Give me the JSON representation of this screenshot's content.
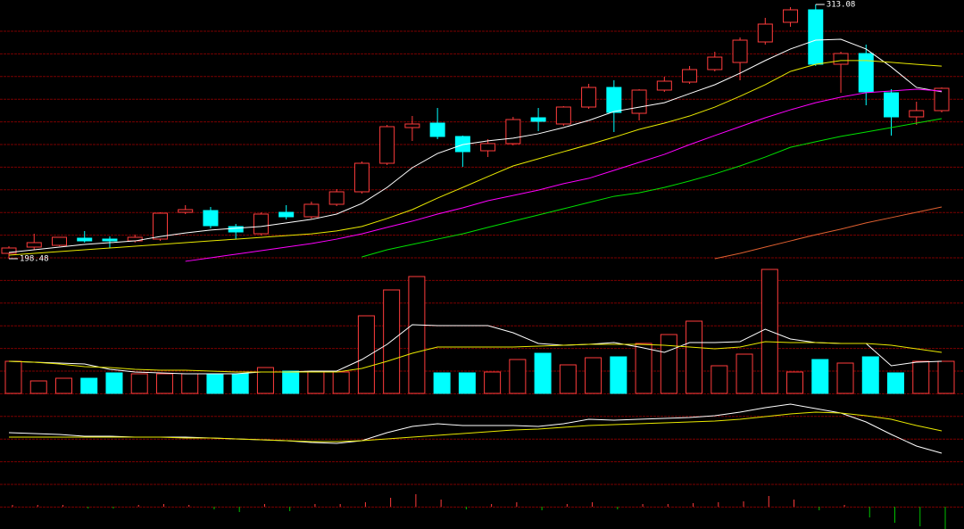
{
  "chart_data": [
    {
      "type": "candlestick",
      "up_color": "#ff3c3c",
      "down_color": "#00ffff",
      "ylim": [
        198.48,
        313.08
      ],
      "max_label": 313.08,
      "min_label": 198.48,
      "open": [
        200.89,
        203.71,
        204.51,
        207.73,
        207.33,
        206.52,
        207.33,
        219.39,
        220.19,
        212.96,
        209.74,
        219.39,
        217.38,
        223.01,
        228.64,
        241.5,
        257.59,
        259.6,
        253.57,
        247.13,
        250.35,
        262.01,
        259.2,
        266.84,
        275.68,
        264.02,
        274.48,
        278.1,
        283.73,
        286.94,
        296.19,
        305.04,
        310.67,
        286.14,
        290.96,
        273.27,
        262.41,
        265.23
      ],
      "high": [
        204.11,
        209.74,
        208.13,
        210.95,
        208.53,
        209.34,
        219.39,
        222.61,
        221.8,
        214.16,
        219.39,
        222.61,
        224.21,
        229.84,
        242.31,
        258.8,
        262.82,
        266.43,
        253.97,
        252.36,
        262.41,
        266.43,
        267.24,
        277.29,
        278.9,
        274.88,
        280.51,
        285.33,
        291.77,
        298.2,
        307.05,
        311.87,
        313.08,
        291.77,
        294.98,
        274.88,
        269.25,
        275.68
      ],
      "low": [
        198.48,
        202.5,
        204.11,
        205.72,
        203.31,
        205.72,
        206.52,
        218.59,
        212.15,
        207.33,
        208.93,
        216.17,
        216.57,
        222.2,
        227.83,
        240.7,
        251.56,
        252.36,
        239.9,
        244.32,
        249.55,
        255.98,
        258.39,
        266.03,
        255.58,
        260.81,
        273.67,
        277.29,
        282.92,
        278.9,
        294.98,
        303.03,
        285.33,
        273.27,
        267.64,
        253.97,
        258.8,
        264.42
      ],
      "close": [
        203.31,
        205.72,
        208.13,
        206.52,
        206.52,
        208.13,
        218.99,
        220.6,
        213.36,
        210.54,
        218.59,
        217.38,
        223.01,
        228.64,
        241.5,
        257.99,
        259.2,
        253.57,
        246.73,
        250.35,
        261.21,
        260.4,
        266.84,
        275.68,
        264.42,
        274.48,
        278.5,
        283.73,
        289.35,
        296.99,
        304.23,
        310.67,
        286.14,
        290.96,
        273.67,
        262.41,
        265.23,
        275.28
      ],
      "lines": [
        {
          "color": "#ffffff",
          "values": [
            201.3,
            202.5,
            203.7,
            204.9,
            205.7,
            206.5,
            208.5,
            210.1,
            211.4,
            212.2,
            213.0,
            214.6,
            216.2,
            218.6,
            223.4,
            230.6,
            239.5,
            245.9,
            249.9,
            251.6,
            252.8,
            254.8,
            257.6,
            260.8,
            264.8,
            266.8,
            268.8,
            272.9,
            276.9,
            282.1,
            287.8,
            293.0,
            297.0,
            297.4,
            293.0,
            284.9,
            275.7,
            273.7
          ]
        },
        {
          "color": "#e8e800",
          "values": [
            200.1,
            200.9,
            201.7,
            202.5,
            203.3,
            204.1,
            204.9,
            205.7,
            206.5,
            207.3,
            208.1,
            208.9,
            209.7,
            211.0,
            213.0,
            216.6,
            220.6,
            225.8,
            230.6,
            235.5,
            240.3,
            243.5,
            246.7,
            249.9,
            253.2,
            256.8,
            259.6,
            262.8,
            266.8,
            271.7,
            276.9,
            282.9,
            286.1,
            287.8,
            287.8,
            287.0,
            286.1,
            285.3
          ]
        },
        {
          "color": "#ff00ff",
          "values": [
            null,
            null,
            null,
            null,
            null,
            null,
            null,
            197.3,
            198.9,
            200.5,
            202.1,
            203.7,
            205.3,
            207.3,
            209.7,
            212.6,
            215.4,
            218.6,
            221.4,
            224.6,
            227.0,
            229.4,
            232.3,
            234.7,
            238.3,
            241.9,
            245.5,
            249.9,
            254.0,
            258.0,
            262.0,
            265.6,
            268.8,
            271.3,
            273.3,
            274.1,
            274.9,
            274.1
          ]
        },
        {
          "color": "#00e000",
          "values": [
            null,
            null,
            null,
            null,
            null,
            null,
            null,
            null,
            null,
            null,
            null,
            null,
            null,
            null,
            199.3,
            202.5,
            204.9,
            207.3,
            209.7,
            212.6,
            215.4,
            218.2,
            221.0,
            223.8,
            226.6,
            228.2,
            230.6,
            233.5,
            236.7,
            240.3,
            244.3,
            248.7,
            251.2,
            253.6,
            255.6,
            257.6,
            259.6,
            261.6
          ]
        },
        {
          "color": "#e06030",
          "values": [
            null,
            null,
            null,
            null,
            null,
            null,
            null,
            null,
            null,
            null,
            null,
            null,
            null,
            null,
            null,
            null,
            null,
            null,
            null,
            null,
            null,
            null,
            null,
            null,
            null,
            null,
            null,
            null,
            198.5,
            200.9,
            203.7,
            206.5,
            209.3,
            211.8,
            214.6,
            217.0,
            219.4,
            221.8
          ]
        }
      ]
    },
    {
      "type": "volume",
      "ylim": [
        0,
        140
      ],
      "values": [
        36,
        14,
        17,
        17,
        23,
        22,
        22,
        22,
        22,
        22,
        29,
        25,
        24,
        24,
        87,
        116,
        131,
        23,
        23,
        24,
        38,
        45,
        32,
        40,
        41,
        56,
        66,
        81,
        31,
        44,
        139,
        24,
        38,
        34,
        41,
        23,
        36,
        36
      ],
      "lines": [
        {
          "color": "#ffffff",
          "values": [
            36,
            35,
            34,
            33,
            27,
            24,
            23,
            22,
            22,
            22,
            24,
            24,
            25,
            25,
            38,
            55,
            77,
            76,
            76,
            76,
            68,
            56,
            54,
            55,
            57,
            52,
            46,
            57,
            57,
            58,
            72,
            61,
            57,
            56,
            56,
            31,
            35,
            36
          ]
        },
        {
          "color": "#e8e800",
          "values": [
            36,
            35,
            33,
            30,
            29,
            27,
            26,
            26,
            25,
            24,
            24,
            24,
            24,
            24,
            28,
            36,
            45,
            52,
            52,
            52,
            52,
            53,
            54,
            55,
            55,
            55,
            54,
            52,
            50,
            52,
            58,
            57,
            57,
            56,
            56,
            54,
            50,
            46
          ]
        }
      ]
    },
    {
      "type": "line",
      "ylim": [
        -40,
        60
      ],
      "lines": [
        {
          "color": "#ffffff",
          "values": [
            15,
            14,
            13,
            11,
            11,
            10,
            10,
            10,
            9,
            8,
            7,
            6,
            4,
            3,
            6,
            15,
            22,
            25,
            23,
            23,
            23,
            22,
            25,
            30,
            29,
            30,
            31,
            32,
            34,
            38,
            43,
            47,
            42,
            37,
            27,
            13,
            0,
            -8
          ]
        },
        {
          "color": "#e8e800",
          "values": [
            10,
            10,
            10,
            10,
            10,
            10,
            10,
            9,
            9,
            8,
            7,
            6,
            5,
            5,
            6,
            8,
            10,
            12,
            14,
            16,
            18,
            19,
            21,
            23,
            24,
            25,
            26,
            27,
            28,
            30,
            33,
            36,
            38,
            37,
            34,
            30,
            23,
            17
          ]
        }
      ]
    },
    {
      "type": "bar",
      "ylim": [
        -25,
        25
      ],
      "pos_color": "#ff3c3c",
      "neg_color": "#00c000",
      "values": [
        2,
        2,
        2,
        -2,
        -2,
        2,
        3,
        2,
        -3,
        -6,
        3,
        -5,
        3,
        3,
        5,
        10,
        14,
        8,
        -3,
        3,
        5,
        -4,
        3,
        5,
        -3,
        3,
        3,
        4,
        5,
        6,
        12,
        8,
        -4,
        2,
        -12,
        -18,
        -22,
        -25
      ]
    }
  ]
}
